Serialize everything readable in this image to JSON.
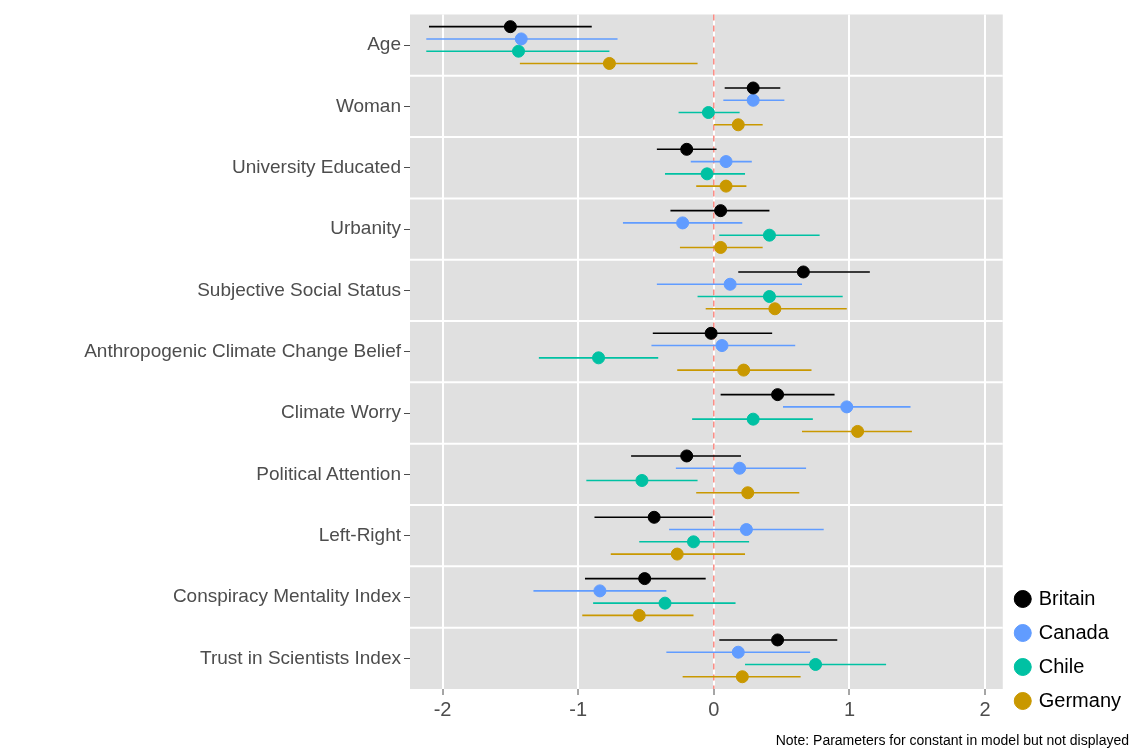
{
  "chart_data": {
    "type": "scatter",
    "orientation": "horizontal",
    "categories": [
      "Age",
      "Woman",
      "University Educated",
      "Urbanity",
      "Subjective Social Status",
      "Anthropogenic Climate Change Belief",
      "Climate Worry",
      "Political Attention",
      "Left-Right",
      "Conspiracy Mentality Index",
      "Trust in Scientists Index"
    ],
    "xlim": [
      -2.24,
      2.13
    ],
    "xticks": [
      -2,
      -1,
      0,
      1,
      2
    ],
    "grid": true,
    "legend": "right",
    "marker": "circle",
    "ref_lines": [
      {
        "axis": "x",
        "value": 0,
        "color": "#f8766d",
        "line_style": "dashed"
      }
    ],
    "annotations": [
      "Note: Parameters for constant in model but not displayed"
    ],
    "series": [
      {
        "name": "Britain",
        "color": "#000000",
        "values": [
          -1.5,
          0.29,
          -0.2,
          0.05,
          0.66,
          -0.02,
          0.47,
          -0.2,
          -0.44,
          -0.51,
          0.47
        ],
        "errors": [
          [
            -2.1,
            -0.9
          ],
          [
            0.08,
            0.49
          ],
          [
            -0.42,
            0.02
          ],
          [
            -0.32,
            0.41
          ],
          [
            0.18,
            1.15
          ],
          [
            -0.45,
            0.43
          ],
          [
            0.05,
            0.89
          ],
          [
            -0.61,
            0.2
          ],
          [
            -0.88,
            -0.01
          ],
          [
            -0.95,
            -0.06
          ],
          [
            0.04,
            0.91
          ]
        ]
      },
      {
        "name": "Canada",
        "color": "#619cff",
        "values": [
          -1.42,
          0.29,
          0.09,
          -0.23,
          0.12,
          0.06,
          0.98,
          0.19,
          0.24,
          -0.84,
          0.18
        ],
        "errors": [
          [
            -2.12,
            -0.71
          ],
          [
            0.07,
            0.52
          ],
          [
            -0.17,
            0.28
          ],
          [
            -0.67,
            0.21
          ],
          [
            -0.42,
            0.65
          ],
          [
            -0.46,
            0.6
          ],
          [
            0.51,
            1.45
          ],
          [
            -0.28,
            0.68
          ],
          [
            -0.33,
            0.81
          ],
          [
            -1.33,
            -0.35
          ],
          [
            -0.35,
            0.71
          ]
        ]
      },
      {
        "name": "Chile",
        "color": "#00c1a3",
        "values": [
          -1.44,
          -0.04,
          -0.05,
          0.41,
          0.41,
          -0.85,
          0.29,
          -0.53,
          -0.15,
          -0.36,
          0.75
        ],
        "errors": [
          [
            -2.12,
            -0.77
          ],
          [
            -0.26,
            0.19
          ],
          [
            -0.36,
            0.23
          ],
          [
            0.04,
            0.78
          ],
          [
            -0.12,
            0.95
          ],
          [
            -1.29,
            -0.41
          ],
          [
            -0.16,
            0.73
          ],
          [
            -0.94,
            -0.12
          ],
          [
            -0.55,
            0.26
          ],
          [
            -0.89,
            0.16
          ],
          [
            0.23,
            1.27
          ]
        ]
      },
      {
        "name": "Germany",
        "color": "#c99800",
        "values": [
          -0.77,
          0.18,
          0.09,
          0.05,
          0.45,
          0.22,
          1.06,
          0.25,
          -0.27,
          -0.55,
          0.21
        ],
        "errors": [
          [
            -1.43,
            -0.12
          ],
          [
            0.0,
            0.36
          ],
          [
            -0.13,
            0.24
          ],
          [
            -0.25,
            0.36
          ],
          [
            -0.06,
            0.98
          ],
          [
            -0.27,
            0.72
          ],
          [
            0.65,
            1.46
          ],
          [
            -0.13,
            0.63
          ],
          [
            -0.76,
            0.23
          ],
          [
            -0.97,
            -0.15
          ],
          [
            -0.23,
            0.64
          ]
        ]
      }
    ]
  }
}
